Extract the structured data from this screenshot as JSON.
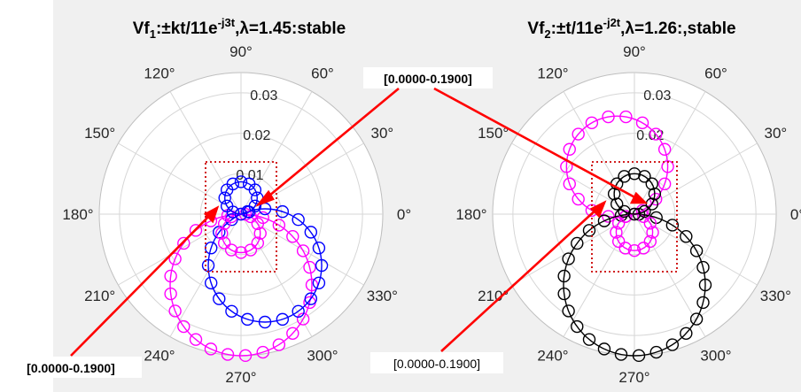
{
  "figure": {
    "titles": [
      {
        "main": "Vf",
        "sub": "1",
        "mid": ":±kt/11e",
        "sup": "-j3t",
        "tail": ",λ=1.45:stable"
      },
      {
        "main": "Vf",
        "sub": "2",
        "mid": ":±t/11e",
        "sup": "-j2t",
        "tail": ",λ=1.26:,stable"
      }
    ],
    "angle_labels": [
      "0°",
      "30°",
      "60°",
      "90°",
      "120°",
      "150°",
      "180°",
      "210°",
      "240°",
      "270°",
      "300°",
      "330°"
    ],
    "annotations": [
      {
        "text": "[0.0000-0.1900]",
        "bold": true
      },
      {
        "text": "[0.0000-0.1900]",
        "bold": true
      },
      {
        "text": "[0.0000-0.1900]",
        "bold": false
      }
    ],
    "colors": {
      "magenta": "#ff00ff",
      "blue": "#0000ff",
      "black": "#000000",
      "arrow": "#ff0000",
      "inset_box": "#cc0000",
      "axes_bg": "#ffffff",
      "figure_bg": "#f0f0f0",
      "grid": "#d6d6d6"
    }
  },
  "chart_data": [
    {
      "type": "polar-scatter",
      "title": "Vf1:±kt/11e^(-j3t),λ=1.45:stable",
      "theta_ticks_deg": [
        0,
        30,
        60,
        90,
        120,
        150,
        180,
        210,
        240,
        270,
        300,
        330
      ],
      "r_ticks": [
        "0.01",
        "0.02",
        "0.03"
      ],
      "rlim": [
        0,
        0.035
      ],
      "grid": true,
      "marker": "open-circle",
      "series": [
        {
          "shape": "circle",
          "color": "#ff00ff",
          "diameter": 0.035,
          "offset_theta_deg": 270
        },
        {
          "shape": "circle",
          "color": "#0000ff",
          "diameter": 0.028,
          "offset_theta_deg": 295
        },
        {
          "shape": "circle",
          "color": "#ff00ff",
          "diameter": 0.0095,
          "offset_theta_deg": 270
        },
        {
          "shape": "circle",
          "color": "#0000ff",
          "diameter": 0.008,
          "offset_theta_deg": 90
        }
      ],
      "inset_range": "[0.0000-0.1900]"
    },
    {
      "type": "polar-scatter",
      "title": "Vf2:±t/11e^(-j2t),λ=1.26:,stable",
      "theta_ticks_deg": [
        0,
        30,
        60,
        90,
        120,
        150,
        180,
        210,
        240,
        270,
        300,
        330
      ],
      "r_ticks": [
        "0.02",
        "0.03"
      ],
      "rlim": [
        0,
        0.035
      ],
      "grid": true,
      "marker": "open-circle",
      "series": [
        {
          "shape": "circle",
          "color": "#ff00ff",
          "diameter": 0.025,
          "offset_theta_deg": 110
        },
        {
          "shape": "circle",
          "color": "#000000",
          "diameter": 0.035,
          "offset_theta_deg": 270
        },
        {
          "shape": "circle",
          "color": "#ff00ff",
          "diameter": 0.009,
          "offset_theta_deg": 270
        },
        {
          "shape": "circle",
          "color": "#000000",
          "diameter": 0.01,
          "offset_theta_deg": 90
        }
      ],
      "inset_range": "[0.0000-0.1900]"
    }
  ]
}
